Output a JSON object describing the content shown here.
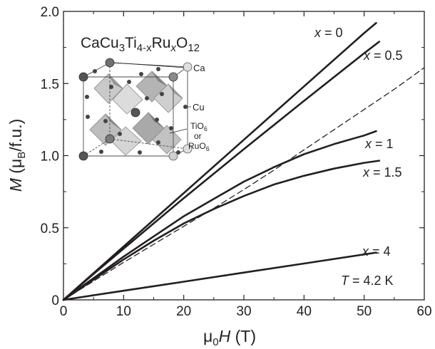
{
  "chart_data": {
    "type": "line",
    "xlabel_prefix": "μ",
    "xlabel_sub": "0",
    "xlabel_var": "H",
    "xlabel_unit": " (T)",
    "ylabel_var": "M",
    "ylabel_unit_open": " (μ",
    "ylabel_unit_sub": "B",
    "ylabel_unit_rest": "/f.u.)",
    "xlim": [
      0,
      60
    ],
    "ylim": [
      0,
      2.0
    ],
    "x_ticks": [
      0,
      10,
      20,
      30,
      40,
      50,
      60
    ],
    "x_tick_labels": [
      "0",
      "10",
      "20",
      "30",
      "40",
      "50",
      "60"
    ],
    "y_ticks": [
      0,
      0.5,
      1.0,
      1.5,
      2.0
    ],
    "y_tick_labels": [
      "0",
      "0.5",
      "1.0",
      "1.5",
      "2.0"
    ],
    "annotation_T": "T = 4.2 K",
    "annotation_T_var": "T",
    "annotation_T_rest": " = 4.2 K",
    "formula": {
      "p1": "CaCu",
      "s1": "3",
      "p2": "Ti",
      "s2": "4-x",
      "p3": "Ru",
      "s3": "x",
      "p4": "O",
      "s4": "12"
    },
    "inset_labels": {
      "ca": "Ca",
      "cu": "Cu",
      "tio": "TiO",
      "tio_sub": "6",
      "or": "or",
      "ruo": "RuO",
      "ruo_sub": "6"
    },
    "series": [
      {
        "name": "x = 0",
        "var": "x",
        "rest": " = 0",
        "x": [
          0,
          5,
          10,
          20,
          30,
          40,
          50,
          52
        ],
        "y": [
          0,
          0.185,
          0.37,
          0.74,
          1.11,
          1.48,
          1.85,
          1.92
        ]
      },
      {
        "name": "x = 0.5",
        "var": "x",
        "rest": " = 0.5",
        "x": [
          0,
          5,
          10,
          20,
          30,
          40,
          50,
          52.5
        ],
        "y": [
          0,
          0.18,
          0.355,
          0.705,
          1.045,
          1.38,
          1.71,
          1.79
        ]
      },
      {
        "name": "x = 1",
        "var": "x",
        "rest": " = 1",
        "x": [
          0,
          5,
          10,
          15,
          20,
          25,
          30,
          35,
          40,
          45,
          50,
          52
        ],
        "y": [
          0,
          0.15,
          0.3,
          0.44,
          0.58,
          0.7,
          0.82,
          0.92,
          1.01,
          1.08,
          1.14,
          1.17
        ]
      },
      {
        "name": "x = 1.5",
        "var": "x",
        "rest": " = 1.5",
        "x": [
          0,
          5,
          10,
          15,
          20,
          25,
          30,
          35,
          40,
          45,
          50,
          52.5
        ],
        "y": [
          0,
          0.14,
          0.28,
          0.41,
          0.53,
          0.63,
          0.72,
          0.8,
          0.86,
          0.91,
          0.95,
          0.965
        ]
      },
      {
        "name": "x = 4",
        "var": "x",
        "rest": " = 4",
        "x": [
          0,
          10,
          20,
          30,
          40,
          50,
          52
        ],
        "y": [
          0,
          0.063,
          0.126,
          0.189,
          0.252,
          0.315,
          0.328
        ]
      },
      {
        "name": "",
        "dashed": true,
        "x": [
          0,
          5,
          10,
          15,
          20,
          25,
          30,
          35,
          40,
          45,
          50,
          55,
          60
        ],
        "y": [
          0,
          0.13,
          0.26,
          0.385,
          0.51,
          0.635,
          0.765,
          0.9,
          1.04,
          1.18,
          1.32,
          1.46,
          1.61
        ]
      }
    ]
  }
}
